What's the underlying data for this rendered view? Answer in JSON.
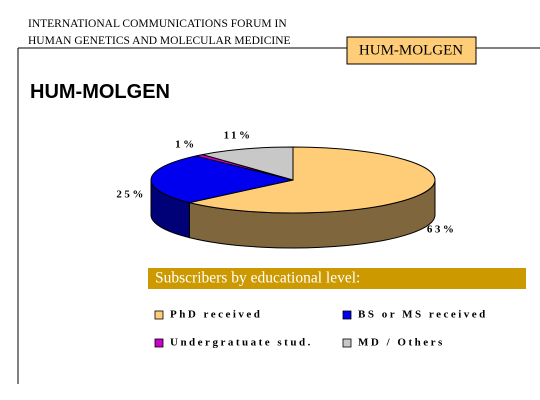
{
  "header": {
    "lines": [
      "INTERNATIONAL COMMUNICATIONS FORUM IN",
      "HUMAN GENETICS AND MOLECULAR MEDICINE"
    ],
    "badge": "HUM-MOLGEN"
  },
  "chart_data": {
    "type": "pie",
    "title": "HUM-MOLGEN",
    "legend_title": "Subscribers by educational level:",
    "categories": [
      "PhD received",
      "BS or MS received",
      "Undergratuate stud.",
      "MD / Others"
    ],
    "values": [
      63,
      25,
      1,
      11
    ],
    "value_labels": [
      "63%",
      "25%",
      "1%",
      "11%"
    ],
    "colors": [
      "#FFCC77",
      "#0000EE",
      "#CC00CC",
      "#C8C8C8"
    ]
  }
}
